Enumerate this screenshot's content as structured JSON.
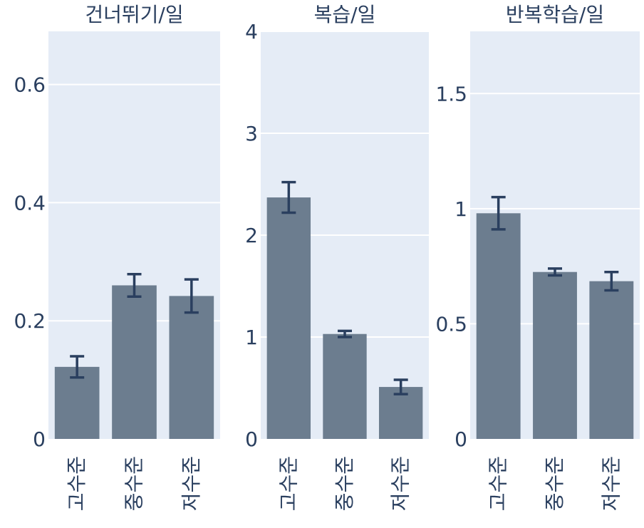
{
  "chart_data": [
    {
      "type": "bar",
      "title": "건너뛰기/일",
      "categories": [
        "고수준",
        "중수준",
        "저수준"
      ],
      "values": [
        0.122,
        0.26,
        0.242
      ],
      "error": [
        0.018,
        0.019,
        0.028
      ],
      "ylim": [
        0,
        0.69
      ],
      "yticks": [
        0,
        0.2,
        0.4,
        0.6
      ],
      "ytick_labels": [
        "0",
        "0.2",
        "0.4",
        "0.6"
      ],
      "grid": true
    },
    {
      "type": "bar",
      "title": "복습/일",
      "categories": [
        "고수준",
        "중수준",
        "저수준"
      ],
      "values": [
        2.37,
        1.03,
        0.51
      ],
      "error": [
        0.15,
        0.03,
        0.07
      ],
      "ylim": [
        0,
        4
      ],
      "yticks": [
        0,
        1,
        2,
        3,
        4
      ],
      "ytick_labels": [
        "0",
        "1",
        "2",
        "3",
        "4"
      ],
      "grid": true
    },
    {
      "type": "bar",
      "title": "반복학습/일",
      "categories": [
        "고수준",
        "중수준",
        "저수준"
      ],
      "values": [
        0.98,
        0.725,
        0.685
      ],
      "error": [
        0.07,
        0.015,
        0.04
      ],
      "ylim": [
        0,
        1.77
      ],
      "yticks": [
        0,
        0.5,
        1,
        1.5
      ],
      "ytick_labels": [
        "0",
        "0.5",
        "1",
        "1.5"
      ],
      "grid": true
    }
  ],
  "colors": {
    "plot_bg": "#e5ecf6",
    "bar": "#6c7d8f",
    "error_bar": "#2a3f5f",
    "grid": "#ffffff",
    "text": "#2a3f5f"
  }
}
